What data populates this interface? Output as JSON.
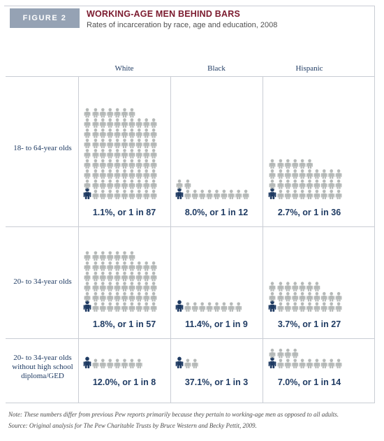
{
  "figure_label": "FIGURE 2",
  "title": "WORKING-AGE MEN BEHIND BARS",
  "subtitle": "Rates of incarceration by race, age and education, 2008",
  "colors": {
    "incarcerated": "#1f3b63",
    "other": "#b5b9b8",
    "title": "#7b1a2e"
  },
  "chart_data": {
    "type": "table",
    "columns": [
      "White",
      "Black",
      "Hispanic"
    ],
    "rows": [
      {
        "label": "18- to 64-year olds",
        "cells": [
          {
            "percent": 1.1,
            "one_in": 87,
            "text": "1.1%, or 1 in 87"
          },
          {
            "percent": 8.0,
            "one_in": 12,
            "text": "8.0%, or 1 in 12"
          },
          {
            "percent": 2.7,
            "one_in": 36,
            "text": "2.7%, or 1 in 36"
          }
        ]
      },
      {
        "label": "20- to 34-year olds",
        "cells": [
          {
            "percent": 1.8,
            "one_in": 57,
            "text": "1.8%, or 1 in 57"
          },
          {
            "percent": 11.4,
            "one_in": 9,
            "text": "11.4%, or 1 in 9"
          },
          {
            "percent": 3.7,
            "one_in": 27,
            "text": "3.7%, or 1 in 27"
          }
        ]
      },
      {
        "label": "20- to 34-year olds without high school diploma/GED",
        "cells": [
          {
            "percent": 12.0,
            "one_in": 8,
            "text": "12.0%, or 1 in 8"
          },
          {
            "percent": 37.1,
            "one_in": 3,
            "text": "37.1%, or 1 in 3"
          },
          {
            "percent": 7.0,
            "one_in": 14,
            "text": "7.0%, or 1 in 14"
          }
        ]
      }
    ]
  },
  "note": "Note: These numbers differ from previous Pew reports primarily because they pertain to working-age men as opposed to all adults.",
  "source": "Source: Original analysis for The Pew Charitable Trusts by Bruce Western and Becky Pettit, 2009."
}
